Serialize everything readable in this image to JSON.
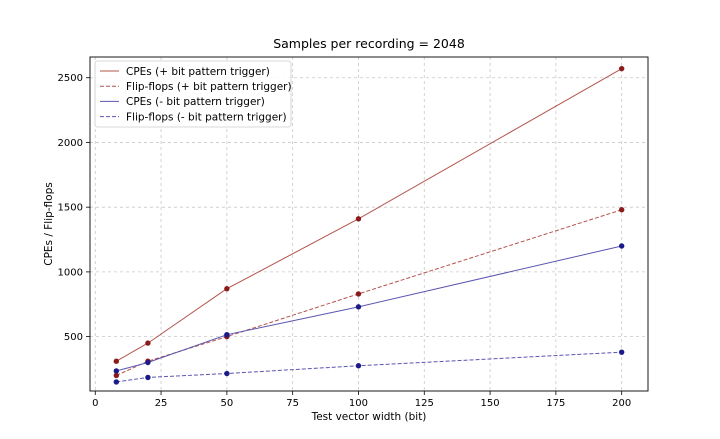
{
  "chart_data": {
    "type": "line",
    "title": "Samples per recording = 2048",
    "xlabel": "Test vector width (bit)",
    "ylabel": "CPEs / Flip-flops",
    "xlim": [
      -2,
      210
    ],
    "ylim": [
      80,
      2660
    ],
    "xticks": [
      0,
      25,
      50,
      75,
      100,
      125,
      150,
      175,
      200
    ],
    "yticks": [
      500,
      1000,
      1500,
      2000,
      2500
    ],
    "grid": true,
    "legend_position": "top-left",
    "x": [
      8,
      20,
      50,
      100,
      200
    ],
    "series": [
      {
        "name": "CPEs (+ bit pattern trigger)",
        "values": [
          310,
          450,
          870,
          1410,
          2570
        ],
        "color": "#b2544a",
        "marker_color": "#8b1a1a",
        "dash": "solid"
      },
      {
        "name": "Flip-flops (+ bit pattern trigger)",
        "values": [
          200,
          310,
          500,
          830,
          1480
        ],
        "color": "#b2544a",
        "marker_color": "#8b1a1a",
        "dash": "dashed"
      },
      {
        "name": "CPEs (- bit pattern trigger)",
        "values": [
          235,
          300,
          515,
          730,
          1200
        ],
        "color": "#5a55b0",
        "marker_color": "#1a1a8b",
        "dash": "solid"
      },
      {
        "name": "Flip-flops (- bit pattern trigger)",
        "values": [
          150,
          185,
          215,
          275,
          380
        ],
        "color": "#5a55b0",
        "marker_color": "#1a1a8b",
        "dash": "dashed"
      }
    ]
  }
}
